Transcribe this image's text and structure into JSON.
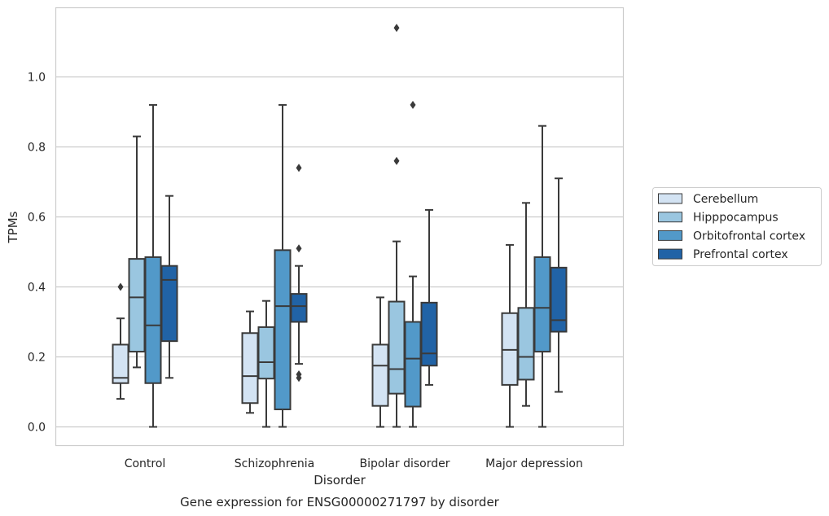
{
  "chart_data": {
    "type": "box",
    "title": "",
    "caption": "Gene expression for ENSG00000271797 by disorder",
    "xlabel": "Disorder",
    "ylabel": "TPMs",
    "ylim": [
      -0.055,
      1.2
    ],
    "yticks": [
      0.0,
      0.2,
      0.4,
      0.6,
      0.8,
      1.0
    ],
    "ytick_labels": [
      "0.0",
      "0.2",
      "0.4",
      "0.6",
      "0.8",
      "1.0"
    ],
    "grid": "horizontal",
    "legend_position": "right",
    "categories": [
      "Control",
      "Schizophrenia",
      "Bipolar disorder",
      "Major depression"
    ],
    "series": [
      {
        "name": "Cerebellum",
        "color": "#d3e3f3",
        "boxes": [
          {
            "whisker_low": 0.08,
            "q1": 0.125,
            "median": 0.14,
            "q3": 0.235,
            "whisker_high": 0.31,
            "outliers": [
              0.4
            ]
          },
          {
            "whisker_low": 0.04,
            "q1": 0.068,
            "median": 0.145,
            "q3": 0.268,
            "whisker_high": 0.33,
            "outliers": []
          },
          {
            "whisker_low": 0.0,
            "q1": 0.06,
            "median": 0.175,
            "q3": 0.235,
            "whisker_high": 0.37,
            "outliers": []
          },
          {
            "whisker_low": 0.0,
            "q1": 0.12,
            "median": 0.22,
            "q3": 0.325,
            "whisker_high": 0.52,
            "outliers": []
          }
        ]
      },
      {
        "name": "Hipppocampus",
        "color": "#9ac6e0",
        "boxes": [
          {
            "whisker_low": 0.17,
            "q1": 0.215,
            "median": 0.37,
            "q3": 0.48,
            "whisker_high": 0.83,
            "outliers": []
          },
          {
            "whisker_low": 0.0,
            "q1": 0.138,
            "median": 0.185,
            "q3": 0.285,
            "whisker_high": 0.36,
            "outliers": []
          },
          {
            "whisker_low": 0.0,
            "q1": 0.095,
            "median": 0.165,
            "q3": 0.358,
            "whisker_high": 0.53,
            "outliers": [
              0.76,
              1.14
            ]
          },
          {
            "whisker_low": 0.06,
            "q1": 0.135,
            "median": 0.2,
            "q3": 0.34,
            "whisker_high": 0.64,
            "outliers": []
          }
        ]
      },
      {
        "name": "Orbitofrontal cortex",
        "color": "#5299c9",
        "boxes": [
          {
            "whisker_low": 0.0,
            "q1": 0.125,
            "median": 0.29,
            "q3": 0.485,
            "whisker_high": 0.92,
            "outliers": []
          },
          {
            "whisker_low": 0.0,
            "q1": 0.05,
            "median": 0.345,
            "q3": 0.505,
            "whisker_high": 0.92,
            "outliers": []
          },
          {
            "whisker_low": 0.0,
            "q1": 0.058,
            "median": 0.195,
            "q3": 0.3,
            "whisker_high": 0.43,
            "outliers": [
              0.92
            ]
          },
          {
            "whisker_low": 0.0,
            "q1": 0.215,
            "median": 0.34,
            "q3": 0.485,
            "whisker_high": 0.86,
            "outliers": []
          }
        ]
      },
      {
        "name": "Prefrontal cortex",
        "color": "#2163a6",
        "boxes": [
          {
            "whisker_low": 0.14,
            "q1": 0.245,
            "median": 0.42,
            "q3": 0.46,
            "whisker_high": 0.66,
            "outliers": []
          },
          {
            "whisker_low": 0.18,
            "q1": 0.3,
            "median": 0.345,
            "q3": 0.38,
            "whisker_high": 0.46,
            "outliers": [
              0.74,
              0.51,
              0.15,
              0.14
            ]
          },
          {
            "whisker_low": 0.12,
            "q1": 0.175,
            "median": 0.21,
            "q3": 0.355,
            "whisker_high": 0.62,
            "outliers": []
          },
          {
            "whisker_low": 0.1,
            "q1": 0.272,
            "median": 0.305,
            "q3": 0.455,
            "whisker_high": 0.71,
            "outliers": []
          }
        ]
      }
    ]
  }
}
